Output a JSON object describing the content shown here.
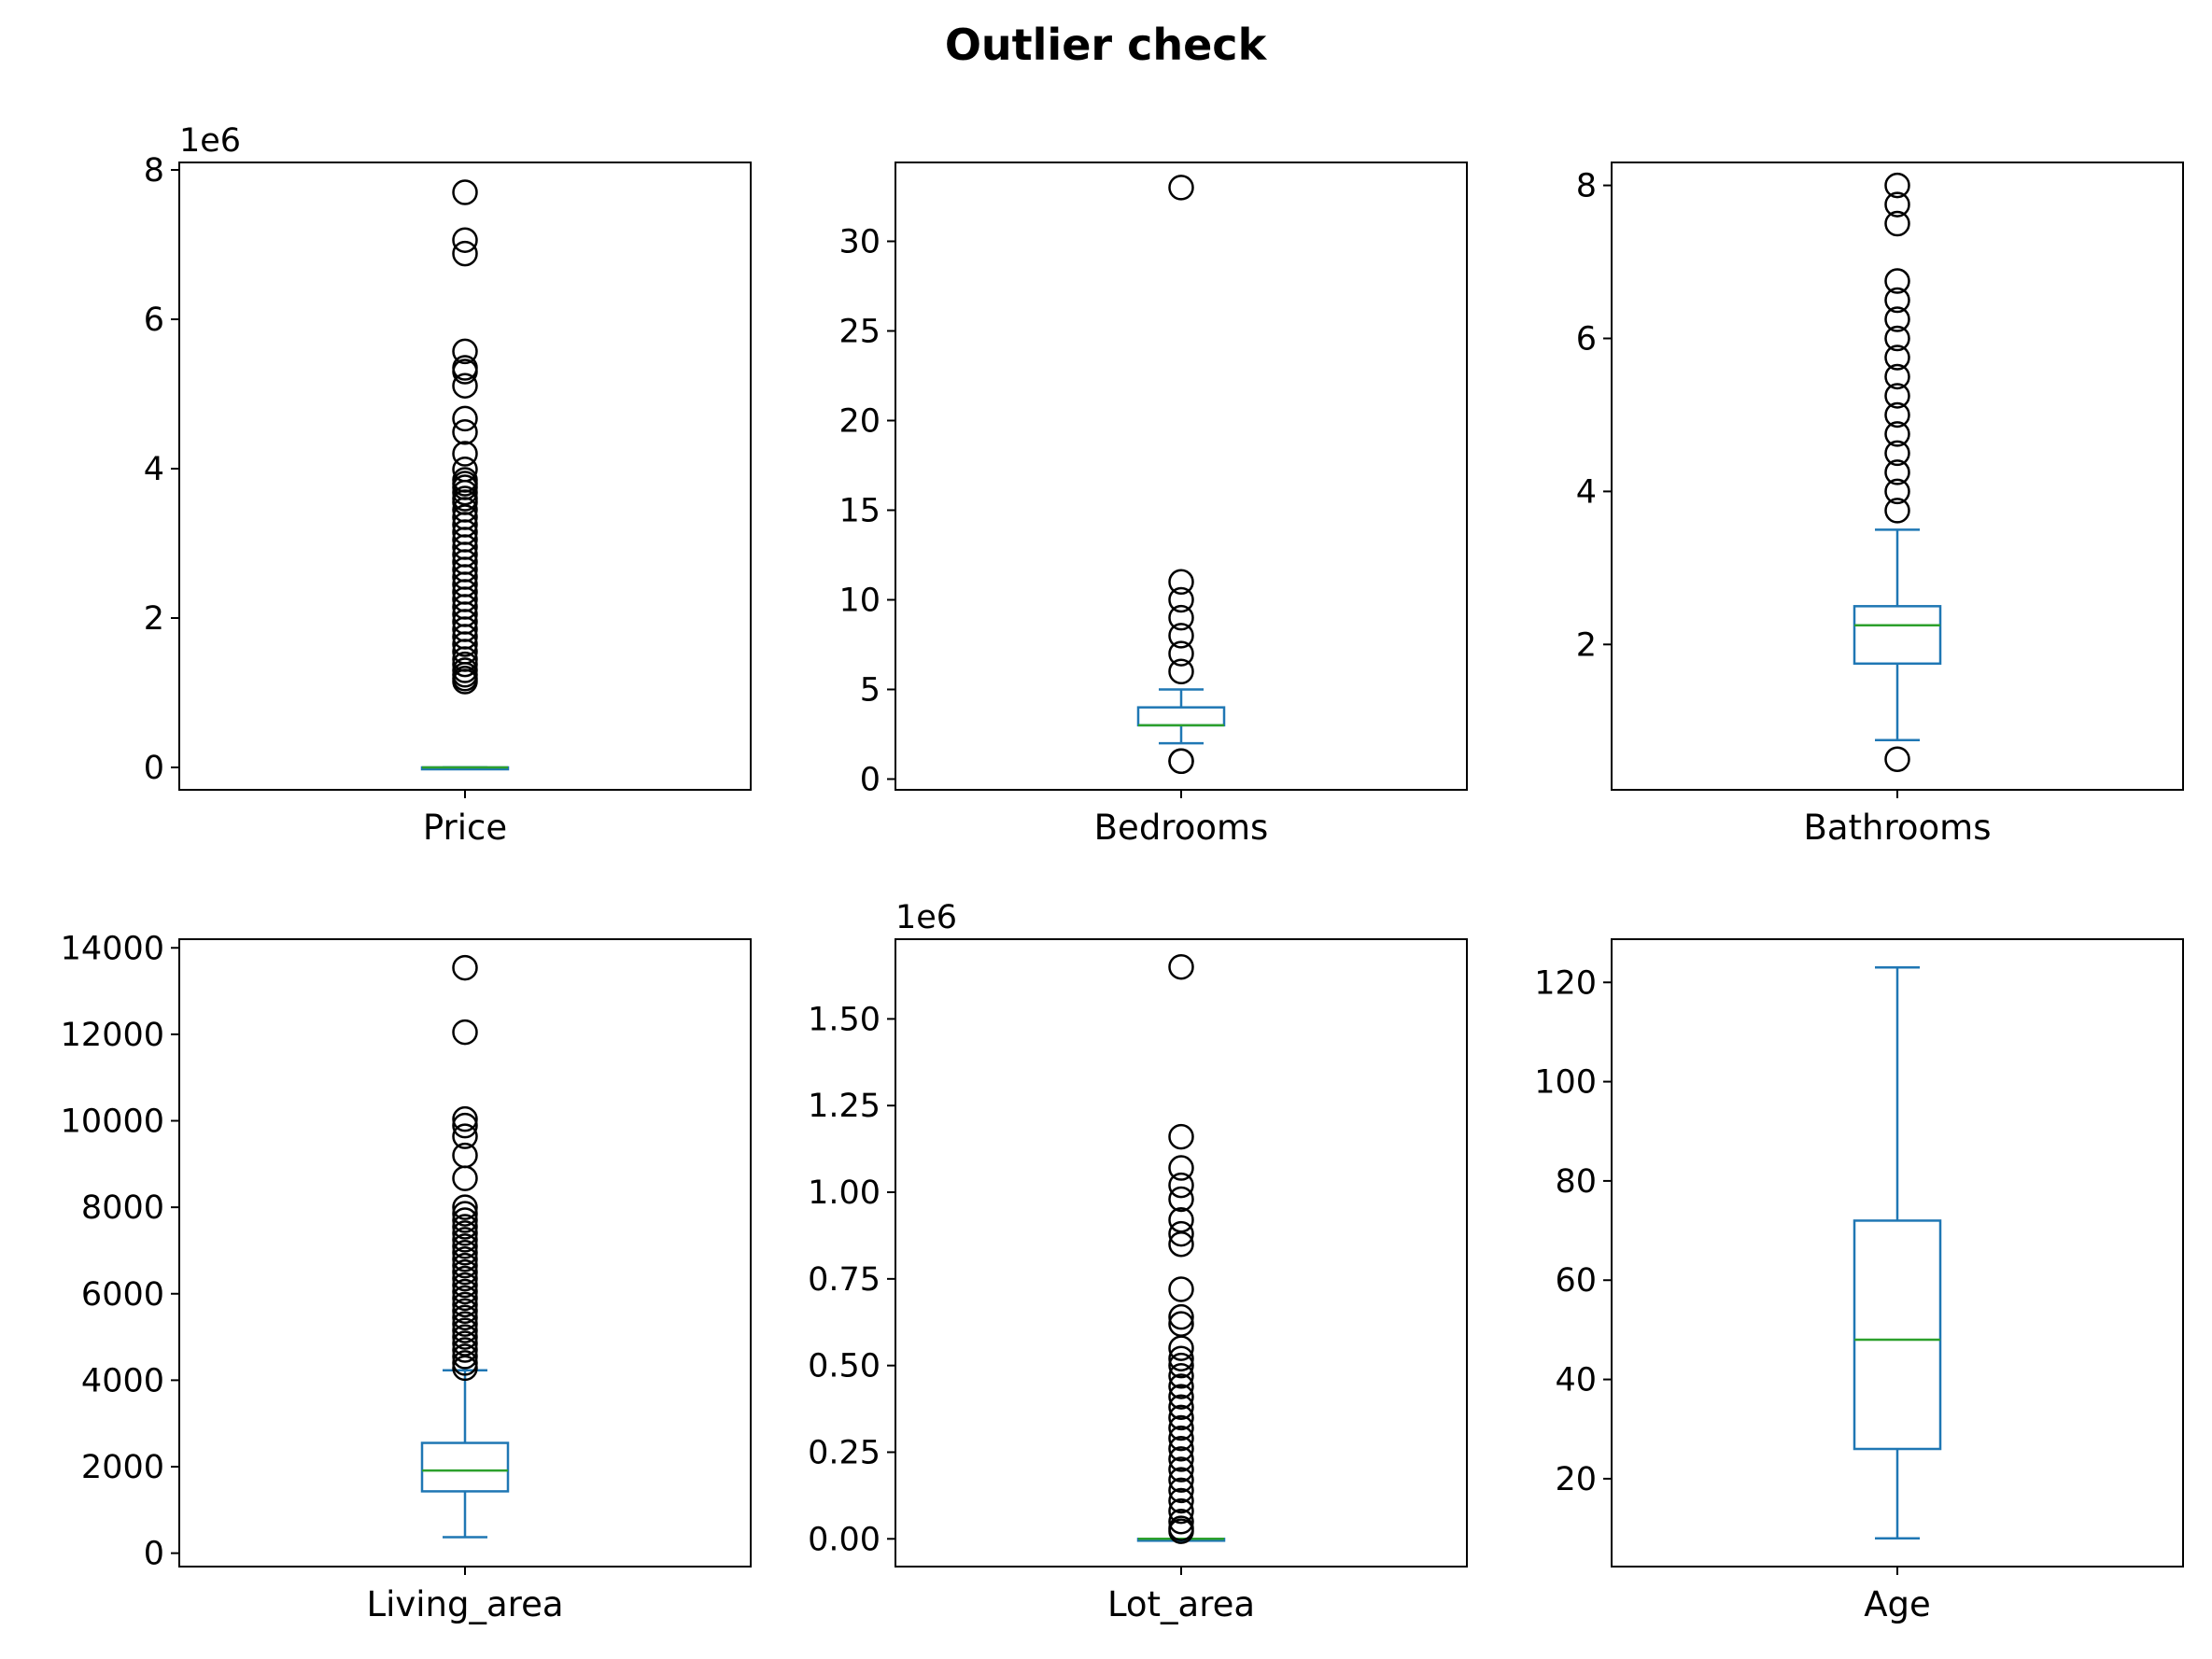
{
  "chart_data": {
    "type": "box",
    "title": "Outlier check",
    "title_color": "#ff0000",
    "colors": {
      "box": "#1f77b4",
      "median": "#2ca02c",
      "flier_edge": "#000000"
    },
    "panels": [
      {
        "category": "Price",
        "offset_label": "1e6",
        "scale": 1000000,
        "ylim": [
          -0.3,
          8.1
        ],
        "yticks": [
          0,
          2,
          4,
          6,
          8
        ],
        "ytick_labels": [
          "0",
          "2",
          "4",
          "6",
          "8"
        ],
        "whisker_low": 0.08,
        "q1": 0.32,
        "median": 0.45,
        "q3": 0.65,
        "whisker_high": 1.13,
        "outliers": [
          7.7,
          7.06,
          6.88,
          5.57,
          5.35,
          5.3,
          5.11,
          4.67,
          4.49,
          4.2,
          3.99,
          3.85,
          3.8,
          3.75,
          3.68,
          3.6,
          3.55,
          3.45,
          3.35,
          3.25,
          3.15,
          3.05,
          2.95,
          2.85,
          2.75,
          2.65,
          2.55,
          2.45,
          2.35,
          2.25,
          2.15,
          2.05,
          1.95,
          1.85,
          1.75,
          1.65,
          1.55,
          1.45,
          1.38,
          1.3,
          1.24,
          1.19,
          1.15
        ]
      },
      {
        "category": "Bedrooms",
        "offset_label": "",
        "scale": 1,
        "ylim": [
          -0.6,
          34.4
        ],
        "yticks": [
          0,
          5,
          10,
          15,
          20,
          25,
          30
        ],
        "ytick_labels": [
          "0",
          "5",
          "10",
          "15",
          "20",
          "25",
          "30"
        ],
        "whisker_low": 2,
        "q1": 3,
        "median": 3,
        "q3": 4,
        "whisker_high": 5,
        "outliers": [
          33,
          11,
          10,
          9,
          8,
          7,
          6,
          1,
          1
        ]
      },
      {
        "category": "Bathrooms",
        "offset_label": "",
        "scale": 1,
        "ylim": [
          0.1,
          8.3
        ],
        "yticks": [
          2,
          4,
          6,
          8
        ],
        "ytick_labels": [
          "2",
          "4",
          "6",
          "8"
        ],
        "whisker_low": 0.75,
        "q1": 1.75,
        "median": 2.25,
        "q3": 2.5,
        "whisker_high": 3.5,
        "outliers": [
          8,
          7.75,
          7.5,
          6.75,
          6.5,
          6.25,
          6,
          5.75,
          5.5,
          5.25,
          5,
          4.75,
          4.5,
          4.25,
          4,
          3.75,
          0.5
        ]
      },
      {
        "category": "Living_area",
        "offset_label": "",
        "scale": 1,
        "ylim": [
          -310,
          14200
        ],
        "yticks": [
          0,
          2000,
          4000,
          6000,
          8000,
          10000,
          12000,
          14000
        ],
        "ytick_labels": [
          "0",
          "2000",
          "4000",
          "6000",
          "8000",
          "10000",
          "12000",
          "14000"
        ],
        "whisker_low": 370,
        "q1": 1430,
        "median": 1910,
        "q3": 2550,
        "whisker_high": 4230,
        "outliers": [
          13540,
          12050,
          10040,
          9890,
          9640,
          9200,
          8670,
          8000,
          7850,
          7700,
          7550,
          7400,
          7250,
          7100,
          6950,
          6800,
          6650,
          6500,
          6350,
          6200,
          6050,
          5900,
          5750,
          5600,
          5450,
          5300,
          5150,
          5000,
          4850,
          4700,
          4550,
          4400,
          4280
        ]
      },
      {
        "category": "Lot_area",
        "offset_label": "1e6",
        "scale": 1000000,
        "ylim": [
          -0.08,
          1.73
        ],
        "yticks": [
          0,
          0.25,
          0.5,
          0.75,
          1.0,
          1.25,
          1.5
        ],
        "ytick_labels": [
          "0.00",
          "0.25",
          "0.50",
          "0.75",
          "1.00",
          "1.25",
          "1.50"
        ],
        "whisker_low": 0.0005,
        "q1": 0.005,
        "median": 0.0076,
        "q3": 0.0107,
        "whisker_high": 0.02,
        "outliers": [
          1.65,
          1.16,
          1.07,
          1.02,
          0.98,
          0.92,
          0.88,
          0.85,
          0.72,
          0.64,
          0.62,
          0.55,
          0.52,
          0.5,
          0.47,
          0.44,
          0.41,
          0.38,
          0.35,
          0.32,
          0.29,
          0.26,
          0.23,
          0.2,
          0.17,
          0.14,
          0.11,
          0.08,
          0.05,
          0.03,
          0.022
        ]
      },
      {
        "category": "Age",
        "offset_label": "",
        "scale": 1,
        "ylim": [
          2.3,
          128.7
        ],
        "yticks": [
          20,
          40,
          60,
          80,
          100,
          120
        ],
        "ytick_labels": [
          "20",
          "40",
          "60",
          "80",
          "100",
          "120"
        ],
        "whisker_low": 8,
        "q1": 26,
        "median": 48,
        "q3": 72,
        "whisker_high": 123,
        "outliers": []
      }
    ]
  }
}
